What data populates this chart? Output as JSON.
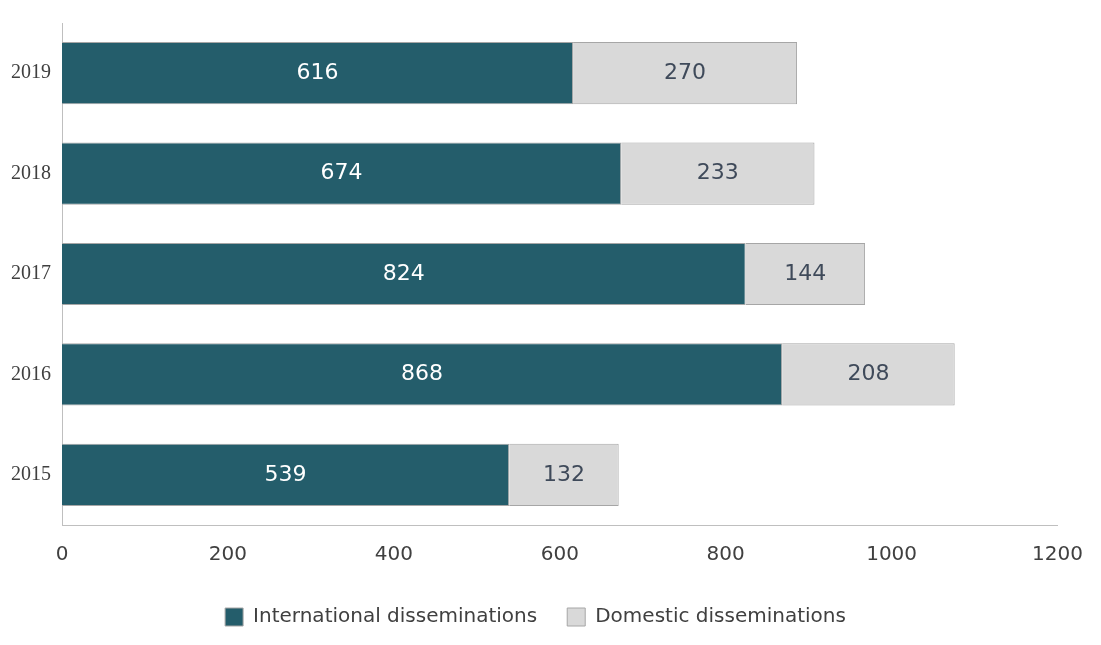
{
  "chart_data": {
    "type": "bar",
    "orientation": "horizontal",
    "stacked": true,
    "categories": [
      "2019",
      "2018",
      "2017",
      "2016",
      "2015"
    ],
    "series": [
      {
        "name": "International disseminations",
        "color": "#245d6b",
        "values": [
          616,
          674,
          824,
          868,
          539
        ]
      },
      {
        "name": "Domestic disseminations",
        "color": "#d9d9d9",
        "values": [
          270,
          233,
          144,
          208,
          132
        ]
      }
    ],
    "xlim": [
      0,
      1200
    ],
    "xticks": [
      0,
      200,
      400,
      600,
      800,
      1000,
      1200
    ],
    "grid": false,
    "legend": "bottom",
    "data_labels": true
  }
}
